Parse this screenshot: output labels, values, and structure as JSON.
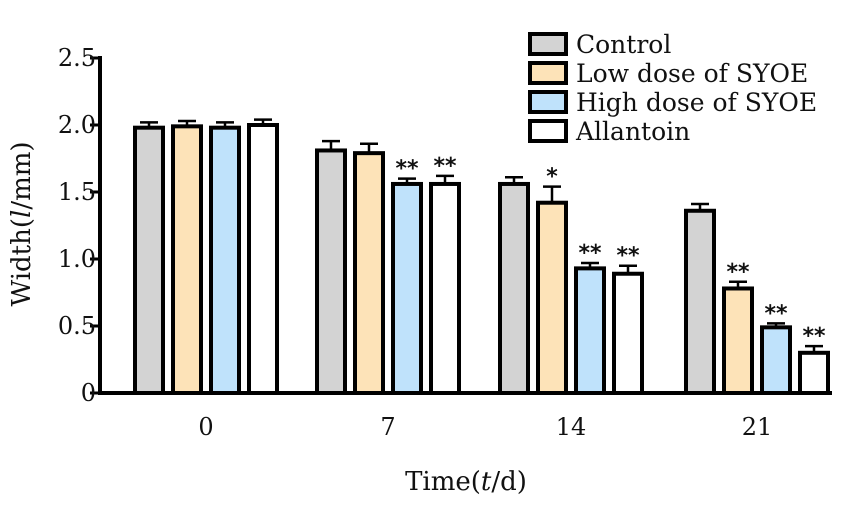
{
  "chart_data": {
    "type": "bar",
    "title": "",
    "xlabel_parts": [
      "Time(",
      "t",
      "/d)"
    ],
    "ylabel_parts": [
      "Width(",
      "l",
      "/mm)"
    ],
    "xlabel": "Time(t/d)",
    "ylabel": "Width(l/mm)",
    "ylim": [
      0,
      2.5
    ],
    "yticks": [
      "0",
      "0.5",
      "1.0",
      "1.5",
      "2.0",
      "2.5"
    ],
    "categories": [
      "0",
      "7",
      "14",
      "21"
    ],
    "legend_position": "top-right",
    "series": [
      {
        "name": "Control",
        "color": "#d3d3d3",
        "values": [
          1.98,
          1.81,
          1.56,
          1.36
        ],
        "errors": [
          0.04,
          0.07,
          0.05,
          0.05
        ],
        "significance": [
          "",
          "",
          "",
          ""
        ]
      },
      {
        "name": "Low dose of SYOE",
        "color": "#fde3b8",
        "values": [
          1.99,
          1.79,
          1.42,
          0.78
        ],
        "errors": [
          0.04,
          0.07,
          0.12,
          0.05
        ],
        "significance": [
          "",
          "",
          "*",
          "**"
        ]
      },
      {
        "name": "High dose of SYOE",
        "color": "#bfe2fb",
        "values": [
          1.98,
          1.56,
          0.93,
          0.49
        ],
        "errors": [
          0.04,
          0.04,
          0.04,
          0.03
        ],
        "significance": [
          "",
          "**",
          "**",
          "**"
        ]
      },
      {
        "name": "Allantoin",
        "color": "#ffffff",
        "values": [
          2.0,
          1.56,
          0.89,
          0.3
        ],
        "errors": [
          0.04,
          0.06,
          0.06,
          0.05
        ],
        "significance": [
          "",
          "**",
          "**",
          "**"
        ]
      }
    ]
  }
}
